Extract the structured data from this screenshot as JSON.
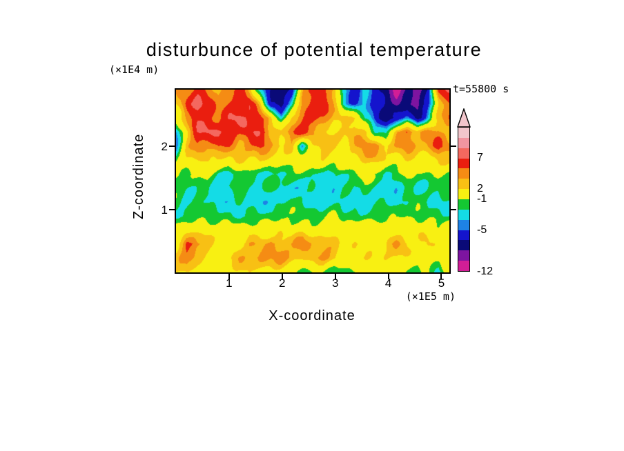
{
  "chart_data": {
    "type": "heatmap",
    "title": "disturbunce of potential temperature",
    "xlabel": "X-coordinate",
    "ylabel": "Z-coordinate",
    "x_unit": "(×1E5 m)",
    "y_unit": "(×1E4 m)",
    "time_annotation": "t=55800 s",
    "x_range": [
      0,
      5.15
    ],
    "y_range": [
      0,
      2.9
    ],
    "x_ticks": [
      {
        "value": 1,
        "label": "1"
      },
      {
        "value": 2,
        "label": "2"
      },
      {
        "value": 3,
        "label": "3"
      },
      {
        "value": 4,
        "label": "4"
      },
      {
        "value": 5,
        "label": "5"
      }
    ],
    "y_ticks": [
      {
        "value": 1,
        "label": "1"
      },
      {
        "value": 2,
        "label": "2"
      }
    ],
    "colorbar": {
      "levels_descending": [
        10.5,
        8.5,
        7,
        5,
        3.5,
        2,
        -1,
        -2.5,
        -4,
        -5,
        -7,
        -9,
        -10.5
      ],
      "palette_top_to_bottom": [
        "#f2c6cc",
        "#f295a0",
        "#f4685f",
        "#ea1e0f",
        "#f58c14",
        "#f8c014",
        "#f8f012",
        "#14c832",
        "#14dce6",
        "#1e82e6",
        "#1414cd",
        "#0a0a78",
        "#7d14a0",
        "#d21e96"
      ],
      "labels": [
        {
          "text": "7",
          "boundary_index": 3
        },
        {
          "text": "2",
          "boundary_index": 6
        },
        {
          "text": "-1",
          "boundary_index": 7
        },
        {
          "text": "-5",
          "boundary_index": 10
        },
        {
          "text": "-12",
          "boundary_index": 14
        }
      ]
    },
    "grid_note": "potential temperature disturbance field; rows top(z=2.9e4 m) to bottom(z=0); 27 columns x=0..5.15e5 m",
    "grid": [
      [
        3,
        4,
        6,
        4,
        3,
        4,
        6,
        3,
        -3,
        -7,
        -9,
        -6,
        3,
        6,
        6,
        4,
        -4,
        -6,
        -3,
        -6,
        -8,
        -11,
        -9,
        -10,
        -7,
        6,
        7
      ],
      [
        2,
        6,
        7,
        6,
        4,
        6,
        7,
        7,
        3,
        -6,
        -8,
        -4,
        3,
        6,
        7,
        3,
        -3,
        -5,
        -3,
        -6,
        -8,
        -10,
        -8,
        -11,
        -6,
        2,
        6
      ],
      [
        1,
        4,
        7,
        6,
        5,
        7,
        8,
        7,
        6,
        2,
        -3,
        2,
        5,
        7,
        5,
        2,
        3,
        2,
        -3,
        -6,
        -9,
        -7,
        -5,
        -8,
        -4,
        3,
        5
      ],
      [
        -4,
        2,
        6,
        7,
        7,
        7,
        6,
        7,
        7,
        4,
        2,
        4,
        6,
        4,
        2,
        1,
        2,
        4,
        3,
        -3,
        -4,
        3,
        5,
        2,
        4,
        4,
        3
      ],
      [
        -4,
        3,
        5,
        4,
        6,
        5,
        3,
        5,
        6,
        3,
        2,
        3,
        -4,
        2,
        3,
        2,
        1,
        3,
        4,
        4,
        2,
        3,
        4,
        3,
        4,
        6,
        4
      ],
      [
        -2,
        1,
        2,
        3,
        2,
        1,
        2,
        1,
        2,
        1,
        0,
        1,
        2,
        1,
        2,
        1,
        2,
        1,
        2,
        3,
        2,
        1,
        2,
        2,
        1,
        3,
        2
      ],
      [
        0,
        -2,
        -1,
        0,
        -2,
        -3,
        -2,
        -1,
        -2,
        -3,
        -3,
        -2,
        -1,
        -2,
        -2,
        -3,
        -2,
        -1,
        0,
        -2,
        -3,
        -2,
        -1,
        -2,
        -1,
        0,
        -1
      ],
      [
        -2,
        -3,
        -2,
        -2,
        -3,
        -3,
        -2,
        -3,
        -3,
        -2,
        -3,
        -3,
        -3,
        -2,
        -3,
        -3,
        -2,
        -3,
        -2,
        -3,
        -3,
        -3,
        -2,
        -3,
        -2,
        -2,
        -2
      ],
      [
        -2,
        -3,
        -3,
        -3,
        -3,
        -3,
        -2,
        -3,
        -3,
        -3,
        -3,
        -2,
        -3,
        -3,
        -3,
        -3,
        -3,
        -2,
        -3,
        -3,
        -3,
        -3,
        -3,
        -2,
        -3,
        -3,
        -2
      ],
      [
        -2,
        -2,
        -1,
        -2,
        -2,
        -2,
        -2,
        -2,
        -2,
        -2,
        -1,
        -2,
        -2,
        -2,
        -2,
        -1,
        -2,
        -2,
        -2,
        -2,
        -2,
        -2,
        -1,
        -2,
        -2,
        -2,
        -2
      ],
      [
        1,
        1,
        0,
        1,
        1,
        1,
        0,
        1,
        1,
        1,
        1,
        0,
        1,
        1,
        1,
        1,
        0,
        1,
        1,
        1,
        0,
        1,
        1,
        1,
        1,
        0,
        1
      ],
      [
        2,
        6,
        4,
        3,
        1,
        1,
        2,
        4,
        3,
        4,
        3,
        3,
        5,
        3,
        3,
        2,
        1,
        2,
        1,
        1,
        2,
        3,
        2,
        1,
        2,
        1,
        1
      ],
      [
        3,
        4,
        3,
        2,
        1,
        2,
        3,
        3,
        4,
        3,
        4,
        3,
        3,
        4,
        4,
        3,
        2,
        1,
        1,
        1,
        2,
        2,
        1,
        1,
        1,
        1,
        1
      ],
      [
        1,
        2,
        1,
        1,
        0,
        1,
        1,
        2,
        1,
        1,
        1,
        0,
        -2,
        -1,
        0,
        -2,
        -2,
        -1,
        0,
        1,
        1,
        0,
        -1,
        -2,
        0,
        -4,
        1
      ]
    ]
  }
}
